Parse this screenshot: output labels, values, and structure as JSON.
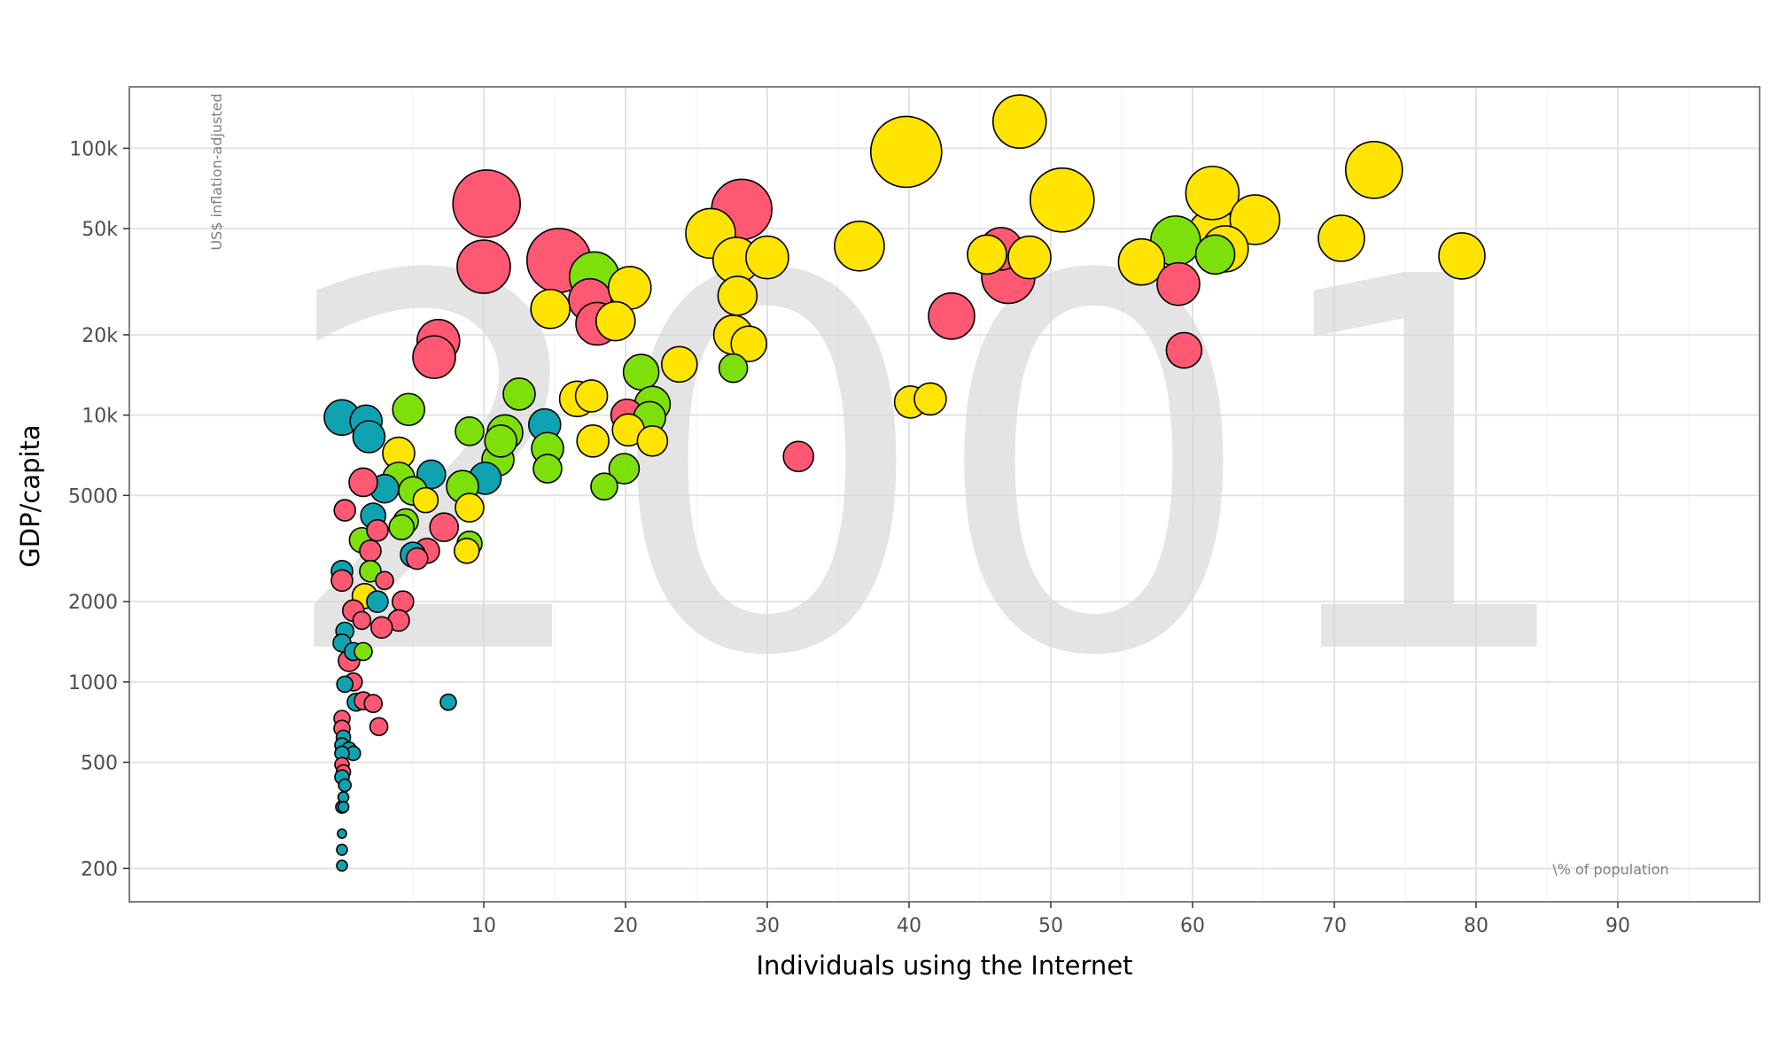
{
  "chart_data": {
    "type": "scatter",
    "subtype": "bubble",
    "title": "",
    "year_label": "2001",
    "xlabel": "Individuals using the Internet",
    "ylabel": "GDP/capita",
    "x_unit_note": "\\% of population",
    "y_unit_note": "US$ inflation-adjusted",
    "xlim": [
      -15,
      100
    ],
    "ylim_log": [
      150,
      170000
    ],
    "y_scale": "log",
    "x_ticks": [
      10,
      20,
      30,
      40,
      50,
      60,
      70,
      80,
      90
    ],
    "x_tick_labels": [
      "10",
      "20",
      "30",
      "40",
      "50",
      "60",
      "70",
      "80",
      "90"
    ],
    "y_ticks": [
      200,
      500,
      1000,
      2000,
      5000,
      10000,
      20000,
      50000,
      100000
    ],
    "y_tick_labels": [
      "200",
      "500",
      "1000",
      "2000",
      "5000",
      "10k",
      "20k",
      "50k",
      "100k"
    ],
    "grid": true,
    "legend": "none",
    "colors": {
      "teal": "#0fa3b1",
      "green": "#7ee00a",
      "red": "#ff5872",
      "yellow": "#ffe400"
    },
    "points": [
      {
        "x": 10.2,
        "y": 62000,
        "s": 38,
        "c": "red"
      },
      {
        "x": 10.0,
        "y": 36000,
        "s": 30,
        "c": "red"
      },
      {
        "x": 15.3,
        "y": 38000,
        "s": 36,
        "c": "red"
      },
      {
        "x": 17.8,
        "y": 33000,
        "s": 28,
        "c": "green"
      },
      {
        "x": 17.5,
        "y": 27000,
        "s": 24,
        "c": "red"
      },
      {
        "x": 14.7,
        "y": 25000,
        "s": 22,
        "c": "yellow"
      },
      {
        "x": 18.0,
        "y": 22000,
        "s": 24,
        "c": "red"
      },
      {
        "x": 19.3,
        "y": 22500,
        "s": 22,
        "c": "yellow"
      },
      {
        "x": 20.3,
        "y": 30000,
        "s": 24,
        "c": "yellow"
      },
      {
        "x": 23.8,
        "y": 15500,
        "s": 20,
        "c": "yellow"
      },
      {
        "x": 26.0,
        "y": 48000,
        "s": 28,
        "c": "yellow"
      },
      {
        "x": 28.2,
        "y": 59000,
        "s": 34,
        "c": "red"
      },
      {
        "x": 27.8,
        "y": 38000,
        "s": 26,
        "c": "yellow"
      },
      {
        "x": 30.0,
        "y": 39000,
        "s": 24,
        "c": "yellow"
      },
      {
        "x": 27.9,
        "y": 28000,
        "s": 22,
        "c": "yellow"
      },
      {
        "x": 28.7,
        "y": 18500,
        "s": 20,
        "c": "yellow"
      },
      {
        "x": 27.6,
        "y": 20000,
        "s": 22,
        "c": "yellow"
      },
      {
        "x": 27.6,
        "y": 15000,
        "s": 16,
        "c": "green"
      },
      {
        "x": 32.2,
        "y": 7000,
        "s": 17,
        "c": "red"
      },
      {
        "x": 36.5,
        "y": 43000,
        "s": 28,
        "c": "yellow"
      },
      {
        "x": 39.8,
        "y": 97000,
        "s": 40,
        "c": "yellow"
      },
      {
        "x": 40.1,
        "y": 11200,
        "s": 18,
        "c": "yellow"
      },
      {
        "x": 41.5,
        "y": 11500,
        "s": 18,
        "c": "yellow"
      },
      {
        "x": 43.0,
        "y": 23500,
        "s": 26,
        "c": "red"
      },
      {
        "x": 45.5,
        "y": 40000,
        "s": 22,
        "c": "yellow"
      },
      {
        "x": 46.5,
        "y": 42000,
        "s": 24,
        "c": "red"
      },
      {
        "x": 48.5,
        "y": 39000,
        "s": 24,
        "c": "yellow"
      },
      {
        "x": 47.8,
        "y": 126000,
        "s": 30,
        "c": "yellow"
      },
      {
        "x": 50.8,
        "y": 64000,
        "s": 36,
        "c": "yellow"
      },
      {
        "x": 47.0,
        "y": 33000,
        "s": 30,
        "c": "red"
      },
      {
        "x": 56.4,
        "y": 37500,
        "s": 26,
        "c": "yellow"
      },
      {
        "x": 59.0,
        "y": 31000,
        "s": 24,
        "c": "red"
      },
      {
        "x": 59.4,
        "y": 17500,
        "s": 20,
        "c": "red"
      },
      {
        "x": 61.5,
        "y": 47000,
        "s": 30,
        "c": "yellow"
      },
      {
        "x": 61.4,
        "y": 68000,
        "s": 30,
        "c": "yellow"
      },
      {
        "x": 64.4,
        "y": 54000,
        "s": 28,
        "c": "yellow"
      },
      {
        "x": 62.3,
        "y": 42000,
        "s": 26,
        "c": "yellow"
      },
      {
        "x": 61.6,
        "y": 40000,
        "s": 22,
        "c": "green"
      },
      {
        "x": 58.8,
        "y": 45000,
        "s": 28,
        "c": "green"
      },
      {
        "x": 70.5,
        "y": 46000,
        "s": 26,
        "c": "yellow"
      },
      {
        "x": 72.8,
        "y": 83000,
        "s": 32,
        "c": "yellow"
      },
      {
        "x": 79.0,
        "y": 39500,
        "s": 26,
        "c": "yellow"
      },
      {
        "x": 12.5,
        "y": 12000,
        "s": 18,
        "c": "green"
      },
      {
        "x": 14.3,
        "y": 9200,
        "s": 18,
        "c": "teal"
      },
      {
        "x": 16.6,
        "y": 11500,
        "s": 20,
        "c": "yellow"
      },
      {
        "x": 17.6,
        "y": 11800,
        "s": 18,
        "c": "yellow"
      },
      {
        "x": 17.7,
        "y": 8000,
        "s": 18,
        "c": "yellow"
      },
      {
        "x": 20.1,
        "y": 10000,
        "s": 18,
        "c": "red"
      },
      {
        "x": 21.7,
        "y": 9800,
        "s": 18,
        "c": "green"
      },
      {
        "x": 21.1,
        "y": 14500,
        "s": 20,
        "c": "green"
      },
      {
        "x": 21.9,
        "y": 11000,
        "s": 20,
        "c": "green"
      },
      {
        "x": 20.2,
        "y": 8800,
        "s": 18,
        "c": "yellow"
      },
      {
        "x": 21.9,
        "y": 8000,
        "s": 17,
        "c": "yellow"
      },
      {
        "x": 19.9,
        "y": 6300,
        "s": 17,
        "c": "green"
      },
      {
        "x": 18.5,
        "y": 5400,
        "s": 15,
        "c": "green"
      },
      {
        "x": 14.5,
        "y": 6300,
        "s": 16,
        "c": "green"
      },
      {
        "x": 14.5,
        "y": 7500,
        "s": 18,
        "c": "green"
      },
      {
        "x": 11.0,
        "y": 6800,
        "s": 18,
        "c": "green"
      },
      {
        "x": 11.5,
        "y": 8600,
        "s": 20,
        "c": "green"
      },
      {
        "x": 11.2,
        "y": 8000,
        "s": 18,
        "c": "green"
      },
      {
        "x": 9.0,
        "y": 8700,
        "s": 16,
        "c": "green"
      },
      {
        "x": 10.1,
        "y": 5800,
        "s": 18,
        "c": "teal"
      },
      {
        "x": 8.5,
        "y": 5400,
        "s": 18,
        "c": "green"
      },
      {
        "x": 9.0,
        "y": 4500,
        "s": 16,
        "c": "yellow"
      },
      {
        "x": 9.0,
        "y": 3300,
        "s": 14,
        "c": "green"
      },
      {
        "x": 8.8,
        "y": 3100,
        "s": 14,
        "c": "yellow"
      },
      {
        "x": 7.2,
        "y": 3800,
        "s": 16,
        "c": "red"
      },
      {
        "x": 6.8,
        "y": 19000,
        "s": 24,
        "c": "red"
      },
      {
        "x": 6.5,
        "y": 16500,
        "s": 24,
        "c": "red"
      },
      {
        "x": 4.7,
        "y": 10500,
        "s": 18,
        "c": "green"
      },
      {
        "x": 4.0,
        "y": 7200,
        "s": 18,
        "c": "yellow"
      },
      {
        "x": 6.3,
        "y": 6000,
        "s": 16,
        "c": "teal"
      },
      {
        "x": 4.0,
        "y": 5800,
        "s": 18,
        "c": "green"
      },
      {
        "x": 5.0,
        "y": 5200,
        "s": 16,
        "c": "green"
      },
      {
        "x": 5.9,
        "y": 4800,
        "s": 14,
        "c": "yellow"
      },
      {
        "x": 4.5,
        "y": 4000,
        "s": 14,
        "c": "green"
      },
      {
        "x": 4.2,
        "y": 3800,
        "s": 14,
        "c": "green"
      },
      {
        "x": 6.0,
        "y": 3100,
        "s": 14,
        "c": "red"
      },
      {
        "x": 5.3,
        "y": 2900,
        "s": 12,
        "c": "red"
      },
      {
        "x": 5.0,
        "y": 3000,
        "s": 14,
        "c": "teal"
      },
      {
        "x": 3.0,
        "y": 5300,
        "s": 16,
        "c": "teal"
      },
      {
        "x": 1.5,
        "y": 5600,
        "s": 16,
        "c": "red"
      },
      {
        "x": 2.2,
        "y": 4200,
        "s": 14,
        "c": "teal"
      },
      {
        "x": 2.5,
        "y": 3700,
        "s": 12,
        "c": "red"
      },
      {
        "x": 1.4,
        "y": 3400,
        "s": 14,
        "c": "green"
      },
      {
        "x": 2.0,
        "y": 3100,
        "s": 12,
        "c": "red"
      },
      {
        "x": 2.0,
        "y": 2600,
        "s": 12,
        "c": "green"
      },
      {
        "x": 3.0,
        "y": 2400,
        "s": 10,
        "c": "red"
      },
      {
        "x": 1.6,
        "y": 2100,
        "s": 14,
        "c": "yellow"
      },
      {
        "x": 2.5,
        "y": 2000,
        "s": 12,
        "c": "teal"
      },
      {
        "x": 4.3,
        "y": 2000,
        "s": 12,
        "c": "red"
      },
      {
        "x": 4.0,
        "y": 1700,
        "s": 12,
        "c": "red"
      },
      {
        "x": 2.8,
        "y": 1600,
        "s": 12,
        "c": "red"
      },
      {
        "x": 1.4,
        "y": 1700,
        "s": 10,
        "c": "red"
      },
      {
        "x": 0.8,
        "y": 1850,
        "s": 12,
        "c": "red"
      },
      {
        "x": 0.2,
        "y": 4400,
        "s": 12,
        "c": "red"
      },
      {
        "x": 0.0,
        "y": 9800,
        "s": 20,
        "c": "teal"
      },
      {
        "x": 1.7,
        "y": 9500,
        "s": 18,
        "c": "teal"
      },
      {
        "x": 1.9,
        "y": 8300,
        "s": 18,
        "c": "teal"
      },
      {
        "x": 0.0,
        "y": 2600,
        "s": 12,
        "c": "teal"
      },
      {
        "x": 0.0,
        "y": 2400,
        "s": 12,
        "c": "red"
      },
      {
        "x": 0.2,
        "y": 1550,
        "s": 10,
        "c": "teal"
      },
      {
        "x": 0.0,
        "y": 1400,
        "s": 10,
        "c": "teal"
      },
      {
        "x": 0.8,
        "y": 1300,
        "s": 10,
        "c": "teal"
      },
      {
        "x": 1.5,
        "y": 1300,
        "s": 10,
        "c": "green"
      },
      {
        "x": 0.5,
        "y": 1200,
        "s": 12,
        "c": "red"
      },
      {
        "x": 0.8,
        "y": 1000,
        "s": 10,
        "c": "red"
      },
      {
        "x": 0.2,
        "y": 980,
        "s": 9,
        "c": "teal"
      },
      {
        "x": 1.0,
        "y": 840,
        "s": 10,
        "c": "teal"
      },
      {
        "x": 1.5,
        "y": 850,
        "s": 10,
        "c": "red"
      },
      {
        "x": 2.2,
        "y": 830,
        "s": 10,
        "c": "red"
      },
      {
        "x": 2.6,
        "y": 680,
        "s": 10,
        "c": "red"
      },
      {
        "x": 7.5,
        "y": 840,
        "s": 9,
        "c": "teal"
      },
      {
        "x": 0.0,
        "y": 730,
        "s": 9,
        "c": "red"
      },
      {
        "x": 0.0,
        "y": 670,
        "s": 9,
        "c": "red"
      },
      {
        "x": 0.1,
        "y": 620,
        "s": 8,
        "c": "teal"
      },
      {
        "x": 0.0,
        "y": 580,
        "s": 8,
        "c": "teal"
      },
      {
        "x": 0.5,
        "y": 560,
        "s": 8,
        "c": "teal"
      },
      {
        "x": 0.8,
        "y": 540,
        "s": 8,
        "c": "teal"
      },
      {
        "x": 0.0,
        "y": 540,
        "s": 8,
        "c": "teal"
      },
      {
        "x": 0.0,
        "y": 490,
        "s": 8,
        "c": "red"
      },
      {
        "x": 0.1,
        "y": 460,
        "s": 8,
        "c": "red"
      },
      {
        "x": 0.0,
        "y": 440,
        "s": 8,
        "c": "teal"
      },
      {
        "x": 0.2,
        "y": 410,
        "s": 7,
        "c": "teal"
      },
      {
        "x": 0.1,
        "y": 370,
        "s": 6,
        "c": "teal"
      },
      {
        "x": 0.0,
        "y": 340,
        "s": 7,
        "c": "teal"
      },
      {
        "x": 0.1,
        "y": 340,
        "s": 6,
        "c": "teal"
      },
      {
        "x": 0.0,
        "y": 270,
        "s": 5,
        "c": "teal"
      },
      {
        "x": 0.0,
        "y": 235,
        "s": 6,
        "c": "teal"
      },
      {
        "x": 0.0,
        "y": 205,
        "s": 6,
        "c": "teal"
      }
    ]
  }
}
